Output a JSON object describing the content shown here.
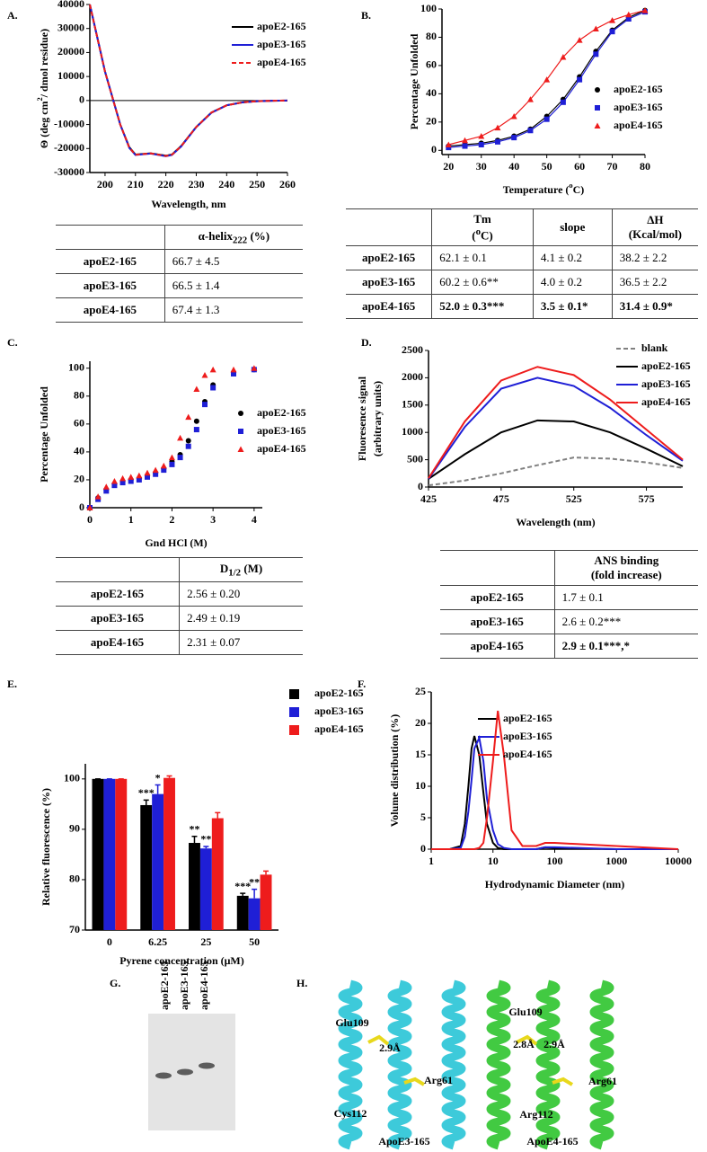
{
  "chart_data": [
    {
      "type": "line",
      "panel": "A.",
      "xlabel": "Wavelength, nm",
      "ylabel": [
        "Θ (deg cm",
        {
          "sup": "2"
        },
        "/ dmol residue)"
      ],
      "x": [
        195,
        200,
        205,
        208,
        210,
        215,
        220,
        222,
        225,
        230,
        235,
        240,
        245,
        250,
        255,
        260
      ],
      "xlim": [
        195,
        260
      ],
      "xticks": [
        200,
        210,
        220,
        230,
        240,
        250,
        260
      ],
      "ylim": [
        -30000,
        40000
      ],
      "yticks": [
        -30000,
        -20000,
        -10000,
        0,
        10000,
        20000,
        30000,
        40000
      ],
      "series": [
        {
          "name": "apoE2-165",
          "color": "#000000",
          "dash": false,
          "values": [
            40000,
            12000,
            -10000,
            -19500,
            -22500,
            -22000,
            -23000,
            -22500,
            -19000,
            -11000,
            -5000,
            -2000,
            -800,
            -300,
            -100,
            0
          ]
        },
        {
          "name": "apoE3-165",
          "color": "#1f1fd6",
          "dash": false,
          "values": [
            40000,
            12000,
            -10000,
            -19800,
            -22700,
            -22100,
            -23200,
            -22700,
            -19200,
            -11100,
            -5100,
            -2000,
            -800,
            -300,
            -100,
            0
          ]
        },
        {
          "name": "apoE4-165",
          "color": "#ee1c1c",
          "dash": true,
          "values": [
            40000,
            12000,
            -10000,
            -19700,
            -22600,
            -22000,
            -23100,
            -22600,
            -19100,
            -11000,
            -5000,
            -2000,
            -800,
            -300,
            -100,
            0
          ]
        }
      ]
    },
    {
      "type": "scatter",
      "panel": "B.",
      "connect": true,
      "xlabel": [
        "Temperature (",
        {
          "sup": "o"
        },
        "C)"
      ],
      "ylabel": "Percentage Unfolded",
      "x": [
        20,
        25,
        30,
        35,
        40,
        45,
        50,
        55,
        60,
        65,
        70,
        75,
        80
      ],
      "xlim": [
        18,
        80
      ],
      "xticks": [
        20,
        30,
        40,
        50,
        60,
        70,
        80
      ],
      "ylim": [
        -3,
        100
      ],
      "yticks": [
        0,
        20,
        40,
        60,
        80,
        100
      ],
      "series": [
        {
          "name": "apoE2-165",
          "color": "#000000",
          "marker": "circle",
          "values": [
            3,
            4,
            5,
            7,
            10,
            15,
            24,
            36,
            52,
            70,
            85,
            94,
            99
          ]
        },
        {
          "name": "apoE3-165",
          "color": "#1f1fd6",
          "marker": "square",
          "values": [
            2,
            3,
            4,
            6,
            9,
            14,
            22,
            34,
            50,
            68,
            84,
            93,
            98
          ]
        },
        {
          "name": "apoE4-165",
          "color": "#ee1c1c",
          "marker": "triangle",
          "values": [
            4,
            7,
            10,
            16,
            24,
            36,
            50,
            66,
            78,
            86,
            92,
            96,
            99
          ]
        }
      ]
    },
    {
      "type": "scatter",
      "panel": "C.",
      "connect": false,
      "xlabel": "Gnd HCl (M)",
      "ylabel": "Percentage Unfolded",
      "x": [
        0,
        0.2,
        0.4,
        0.6,
        0.8,
        1,
        1.2,
        1.4,
        1.6,
        1.8,
        2,
        2.2,
        2.4,
        2.6,
        2.8,
        3,
        3.5,
        4
      ],
      "xlim": [
        0,
        4.2
      ],
      "xticks": [
        0,
        1,
        2,
        3,
        4
      ],
      "ylim": [
        0,
        105
      ],
      "yticks": [
        0,
        20,
        40,
        60,
        80,
        100
      ],
      "series": [
        {
          "name": "apoE2-165",
          "color": "#000000",
          "marker": "circle",
          "values": [
            0,
            7,
            13,
            17,
            19,
            20,
            21,
            23,
            25,
            28,
            33,
            38,
            48,
            62,
            76,
            88,
            97,
            99
          ]
        },
        {
          "name": "apoE3-165",
          "color": "#1f1fd6",
          "marker": "square",
          "values": [
            0,
            6,
            12,
            16,
            18,
            19,
            20,
            22,
            24,
            27,
            31,
            36,
            44,
            56,
            74,
            86,
            96,
            99
          ]
        },
        {
          "name": "apoE4-165",
          "color": "#ee1c1c",
          "marker": "triangle",
          "values": [
            0,
            8,
            15,
            19,
            21,
            22,
            23,
            25,
            27,
            30,
            36,
            50,
            65,
            85,
            95,
            99,
            99,
            100
          ]
        }
      ]
    },
    {
      "type": "line",
      "panel": "D.",
      "xlabel": "Wavelength (nm)",
      "ylabel": "Fluoresence signal",
      "ylabel2": "(arbitrary units)",
      "x": [
        425,
        450,
        475,
        500,
        525,
        550,
        575,
        600
      ],
      "xlim": [
        425,
        600
      ],
      "xticks": [
        425,
        475,
        525,
        575
      ],
      "ylim": [
        0,
        2500
      ],
      "yticks": [
        0,
        500,
        1000,
        1500,
        2000,
        2500
      ],
      "series": [
        {
          "name": "blank",
          "color": "#808080",
          "dash": true,
          "values": [
            30,
            120,
            250,
            400,
            540,
            520,
            450,
            350
          ]
        },
        {
          "name": "apoE2-165",
          "color": "#000000",
          "dash": false,
          "values": [
            150,
            600,
            1000,
            1220,
            1200,
            1000,
            700,
            380
          ]
        },
        {
          "name": "apoE3-165",
          "color": "#1f1fd6",
          "dash": false,
          "values": [
            150,
            1100,
            1800,
            2000,
            1850,
            1450,
            950,
            480
          ]
        },
        {
          "name": "apoE4-165",
          "color": "#ee1c1c",
          "dash": false,
          "values": [
            160,
            1200,
            1950,
            2200,
            2050,
            1600,
            1050,
            500
          ]
        }
      ]
    },
    {
      "type": "bar",
      "panel": "E.",
      "xlabel": "Pyrene concentration (μM)",
      "ylabel": "Relative fluorescence (%)",
      "categories": [
        "0",
        "6.25",
        "25",
        "50"
      ],
      "ylim": [
        70,
        103
      ],
      "yticks": [
        70,
        80,
        90,
        100
      ],
      "series": [
        {
          "name": "apoE2-165",
          "color": "#000000",
          "values": [
            100,
            94.8,
            87.3,
            76.8
          ],
          "errors": [
            0,
            1,
            1.3,
            0.5
          ],
          "significance": [
            null,
            "***",
            "**",
            "***"
          ]
        },
        {
          "name": "apoE3-165",
          "color": "#1f1fd6",
          "values": [
            100,
            97,
            86.2,
            76.3
          ],
          "errors": [
            0,
            1.8,
            0.4,
            1.8
          ],
          "significance": [
            null,
            "*",
            "**",
            "**"
          ]
        },
        {
          "name": "apoE4-165",
          "color": "#ee1c1c",
          "values": [
            100,
            100.2,
            92.2,
            81
          ],
          "errors": [
            0,
            0.4,
            1.1,
            0.7
          ],
          "significance": [
            null,
            null,
            null,
            null
          ]
        }
      ]
    },
    {
      "type": "line",
      "panel": "F.",
      "xscale": "log",
      "xlabel": "Hydrodynamic Diameter (nm)",
      "ylabel": "Volume distribution (%)",
      "x": [
        1,
        2,
        3,
        3.5,
        4,
        4.5,
        5,
        6,
        7,
        8,
        10,
        12,
        15,
        20,
        30,
        50,
        70,
        100,
        1000,
        10000
      ],
      "xlim": [
        1,
        10000
      ],
      "xticks": [
        1,
        10,
        100,
        1000,
        10000
      ],
      "ylim": [
        0,
        25
      ],
      "yticks": [
        0,
        5,
        10,
        15,
        20,
        25
      ],
      "series": [
        {
          "name": "apoE2-165",
          "color": "#000000",
          "dash": false,
          "values": [
            0,
            0,
            0.5,
            4,
            10,
            16,
            18,
            15,
            9,
            4,
            1,
            0.2,
            0,
            0,
            0,
            0,
            0.3,
            0.2,
            0,
            0
          ]
        },
        {
          "name": "apoE3-165",
          "color": "#1f1fd6",
          "dash": false,
          "values": [
            0,
            0,
            0.2,
            2,
            6,
            11,
            16,
            17.7,
            14,
            8,
            3,
            0.8,
            0.2,
            0,
            0,
            0,
            0.3,
            0.3,
            0,
            0
          ]
        },
        {
          "name": "apoE4-165",
          "color": "#ee1c1c",
          "dash": false,
          "values": [
            0,
            0,
            0,
            0,
            0,
            0,
            0,
            0.2,
            1,
            5,
            14,
            22,
            15,
            3,
            0.5,
            0.5,
            1,
            1,
            0.5,
            0
          ]
        }
      ]
    }
  ],
  "tables": [
    {
      "header": [
        null,
        [
          "α-helix",
          {
            "sub": "222"
          },
          " (%)"
        ]
      ],
      "rows": [
        {
          "bold": false,
          "cells": [
            "apoE2-165",
            "66.7 ± 4.5"
          ]
        },
        {
          "bold": false,
          "cells": [
            "apoE3-165",
            "66.5 ± 1.4"
          ]
        },
        {
          "bold": false,
          "cells": [
            "apoE4-165",
            "67.4 ± 1.3"
          ]
        }
      ]
    },
    {
      "header": [
        null,
        [
          "Tm",
          {
            "newline": "("
          },
          {
            "sup": "o"
          },
          "C)"
        ],
        "slope",
        [
          "ΔH",
          {
            "newline": "(Kcal/mol)"
          }
        ]
      ],
      "rows": [
        {
          "bold": false,
          "cells": [
            "apoE2-165",
            "62.1 ± 0.1",
            "4.1 ± 0.2",
            "38.2 ± 2.2"
          ]
        },
        {
          "bold": false,
          "cells": [
            "apoE3-165",
            "60.2 ± 0.6**",
            "4.0 ± 0.2",
            "36.5 ± 2.2"
          ]
        },
        {
          "bold": true,
          "cells": [
            "apoE4-165",
            "52.0 ± 0.3***",
            "3.5 ± 0.1*",
            "31.4 ± 0.9*"
          ]
        }
      ]
    },
    {
      "header": [
        null,
        [
          "D",
          {
            "sub": "1/2"
          },
          " (M)"
        ]
      ],
      "rows": [
        {
          "bold": false,
          "cells": [
            "apoE2-165",
            "2.56 ± 0.20"
          ]
        },
        {
          "bold": false,
          "cells": [
            "apoE3-165",
            "2.49 ± 0.19"
          ]
        },
        {
          "bold": false,
          "cells": [
            "apoE4-165",
            "2.31 ± 0.07"
          ]
        }
      ]
    },
    {
      "header": [
        null,
        [
          "ANS binding",
          {
            "newline": "(fold increase)"
          }
        ]
      ],
      "rows": [
        {
          "bold": false,
          "cells": [
            "apoE2-165",
            "1.7 ± 0.1"
          ]
        },
        {
          "bold": false,
          "cells": [
            "apoE3-165",
            "2.6 ± 0.2***"
          ]
        },
        {
          "bold": true,
          "cells": [
            "apoE4-165",
            "2.9 ± 0.1***,*"
          ]
        }
      ]
    }
  ],
  "gel": {
    "panel": "G.",
    "lanes": [
      "apoE2-165",
      "apoE3-165",
      "apoE4-165"
    ]
  },
  "structures": {
    "panel": "H.",
    "images": [
      {
        "caption": "ApoE3-165",
        "labels": [
          "Glu109",
          "2.9Å",
          "Arg61",
          "Cys112"
        ]
      },
      {
        "caption": "ApoE4-165",
        "labels": [
          "Glu109",
          "2.8Å",
          "2.9Å",
          "Arg61",
          "Arg112"
        ]
      }
    ]
  }
}
